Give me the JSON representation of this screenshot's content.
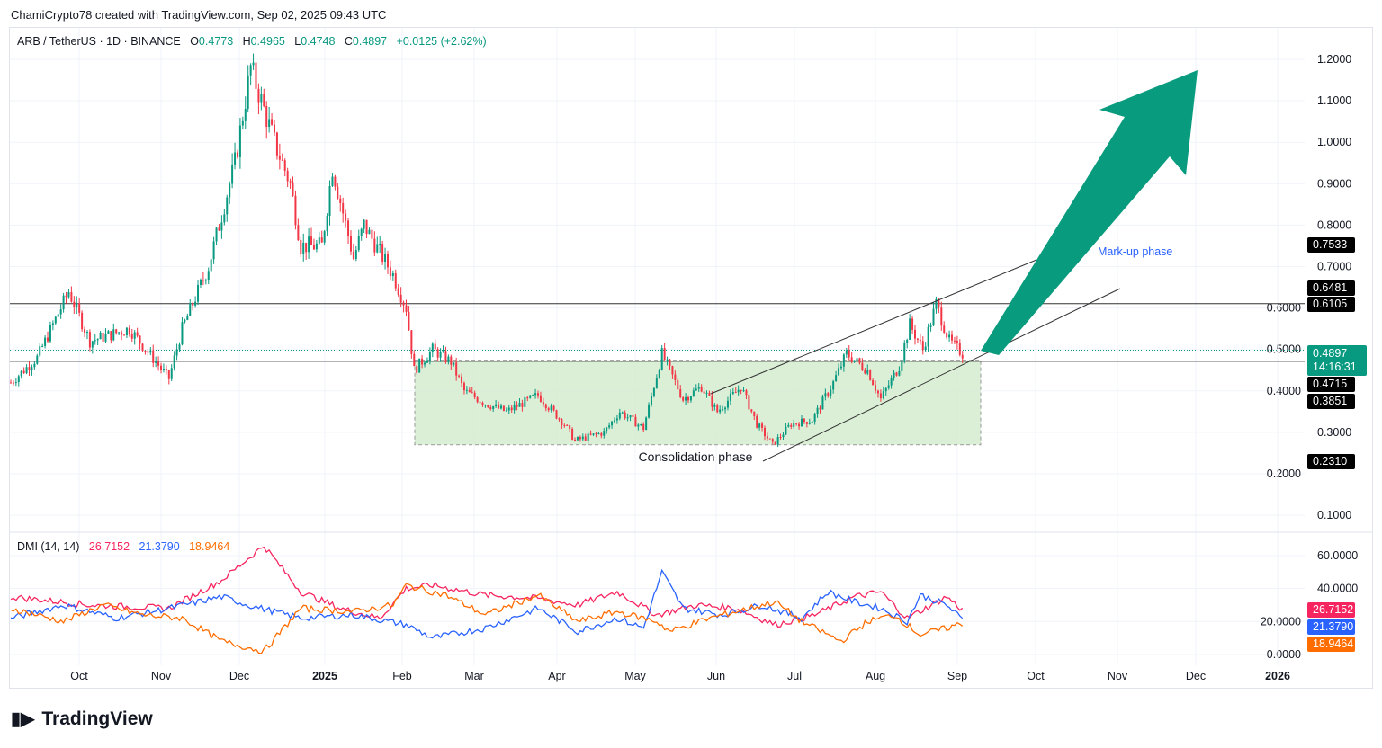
{
  "credit": "ChamiCrypto78 created with TradingView.com, Sep 02, 2025 09:43 UTC",
  "legend": {
    "symbol": "ARB / TetherUS · 1D · BINANCE",
    "o_label": "O",
    "o": "0.4773",
    "h_label": "H",
    "h": "0.4965",
    "l_label": "L",
    "l": "0.4748",
    "c_label": "C",
    "c": "0.4897",
    "change": "+0.0125 (+2.62%)"
  },
  "dmi_legend": {
    "name": "DMI (14, 14)",
    "v1": "26.7152",
    "v2": "21.3790",
    "v3": "18.9464"
  },
  "price_labels": {
    "current": "0.4897",
    "countdown": "14:16:31",
    "l1": "0.7533",
    "l2": "0.6481",
    "l3": "0.6105",
    "l4": "0.4715",
    "l5": "0.3851",
    "l6": "0.2310"
  },
  "dmi_labels": [
    "26.7152",
    "21.3790",
    "18.9464"
  ],
  "annotations": {
    "consolidation": "Consolidation phase",
    "markup": "Mark-up phase"
  },
  "brand": "TradingView",
  "colors": {
    "up": "#089981",
    "down": "#f23645",
    "pink": "#f7255f",
    "blue": "#2962ff",
    "orange": "#ff6d00",
    "zone": "#d5ecd0",
    "arrow": "#089b7e"
  },
  "chart_data": [
    {
      "type": "candlestick",
      "title": "ARB / TetherUS 1D",
      "ylim": [
        0,
        1.25
      ],
      "yticks": [
        "1.2000",
        "1.1000",
        "1.0000",
        "0.9000",
        "0.8000",
        "0.7000",
        "0.6000",
        "0.5000",
        "0.4000",
        "0.3000",
        "0.2000",
        "0.1000"
      ],
      "xticks": [
        "Oct",
        "Nov",
        "Dec",
        "2025",
        "Feb",
        "Mar",
        "Apr",
        "May",
        "Jun",
        "Jul",
        "Aug",
        "Sep",
        "Oct",
        "Nov",
        "Dec",
        "2026"
      ],
      "close_waypoints_days_from_2024_09_05": [
        [
          0,
          0.42
        ],
        [
          10,
          0.48
        ],
        [
          22,
          0.64
        ],
        [
          30,
          0.52
        ],
        [
          45,
          0.55
        ],
        [
          60,
          0.43
        ],
        [
          65,
          0.55
        ],
        [
          75,
          0.7
        ],
        [
          85,
          0.95
        ],
        [
          91,
          1.18
        ],
        [
          100,
          1.0
        ],
        [
          106,
          0.9
        ],
        [
          110,
          0.75
        ],
        [
          118,
          0.75
        ],
        [
          122,
          0.94
        ],
        [
          130,
          0.72
        ],
        [
          134,
          0.8
        ],
        [
          145,
          0.68
        ],
        [
          150,
          0.6
        ],
        [
          153,
          0.45
        ],
        [
          160,
          0.5
        ],
        [
          167,
          0.47
        ],
        [
          172,
          0.4
        ],
        [
          180,
          0.37
        ],
        [
          188,
          0.35
        ],
        [
          200,
          0.39
        ],
        [
          210,
          0.32
        ],
        [
          214,
          0.28
        ],
        [
          225,
          0.3
        ],
        [
          231,
          0.35
        ],
        [
          240,
          0.31
        ],
        [
          247,
          0.49
        ],
        [
          255,
          0.38
        ],
        [
          262,
          0.41
        ],
        [
          268,
          0.35
        ],
        [
          277,
          0.41
        ],
        [
          283,
          0.32
        ],
        [
          289,
          0.27
        ],
        [
          296,
          0.32
        ],
        [
          304,
          0.33
        ],
        [
          312,
          0.42
        ],
        [
          317,
          0.49
        ],
        [
          325,
          0.45
        ],
        [
          330,
          0.38
        ],
        [
          337,
          0.46
        ],
        [
          341,
          0.56
        ],
        [
          346,
          0.5
        ],
        [
          351,
          0.61
        ],
        [
          356,
          0.52
        ],
        [
          361,
          0.49
        ]
      ],
      "horizontal_levels": [
        0.6105,
        0.4715
      ]
    },
    {
      "type": "line",
      "title": "DMI (14, 14)",
      "ylim": [
        0,
        70
      ],
      "yticks": [
        "60.0000",
        "40.0000",
        "20.0000",
        "0.0000"
      ],
      "series": [
        {
          "name": "pink",
          "values_waypoints": [
            [
              0,
              35
            ],
            [
              30,
              30
            ],
            [
              60,
              28
            ],
            [
              80,
              45
            ],
            [
              96,
              66
            ],
            [
              110,
              38
            ],
            [
              125,
              28
            ],
            [
              140,
              22
            ],
            [
              150,
              40
            ],
            [
              160,
              42
            ],
            [
              180,
              36
            ],
            [
              200,
              34
            ],
            [
              215,
              30
            ],
            [
              230,
              38
            ],
            [
              245,
              24
            ],
            [
              260,
              30
            ],
            [
              275,
              28
            ],
            [
              290,
              18
            ],
            [
              305,
              24
            ],
            [
              320,
              35
            ],
            [
              330,
              38
            ],
            [
              340,
              22
            ],
            [
              355,
              35
            ],
            [
              361,
              27
            ]
          ]
        },
        {
          "name": "blue",
          "values_waypoints": [
            [
              0,
              22
            ],
            [
              20,
              30
            ],
            [
              40,
              22
            ],
            [
              60,
              28
            ],
            [
              80,
              35
            ],
            [
              90,
              30
            ],
            [
              110,
              22
            ],
            [
              130,
              24
            ],
            [
              150,
              18
            ],
            [
              160,
              10
            ],
            [
              180,
              16
            ],
            [
              200,
              28
            ],
            [
              215,
              14
            ],
            [
              230,
              22
            ],
            [
              240,
              16
            ],
            [
              247,
              50
            ],
            [
              255,
              28
            ],
            [
              270,
              24
            ],
            [
              285,
              30
            ],
            [
              300,
              22
            ],
            [
              310,
              38
            ],
            [
              320,
              32
            ],
            [
              330,
              28
            ],
            [
              340,
              20
            ],
            [
              345,
              36
            ],
            [
              355,
              30
            ],
            [
              361,
              21
            ]
          ]
        },
        {
          "name": "orange",
          "values_waypoints": [
            [
              0,
              28
            ],
            [
              20,
              20
            ],
            [
              35,
              30
            ],
            [
              50,
              24
            ],
            [
              65,
              22
            ],
            [
              80,
              8
            ],
            [
              96,
              2
            ],
            [
              110,
              28
            ],
            [
              130,
              26
            ],
            [
              145,
              30
            ],
            [
              150,
              42
            ],
            [
              165,
              36
            ],
            [
              180,
              24
            ],
            [
              200,
              36
            ],
            [
              215,
              20
            ],
            [
              230,
              26
            ],
            [
              245,
              20
            ],
            [
              250,
              14
            ],
            [
              265,
              22
            ],
            [
              280,
              28
            ],
            [
              290,
              32
            ],
            [
              300,
              20
            ],
            [
              315,
              8
            ],
            [
              325,
              20
            ],
            [
              335,
              24
            ],
            [
              345,
              12
            ],
            [
              355,
              16
            ],
            [
              361,
              19
            ]
          ]
        }
      ]
    }
  ]
}
